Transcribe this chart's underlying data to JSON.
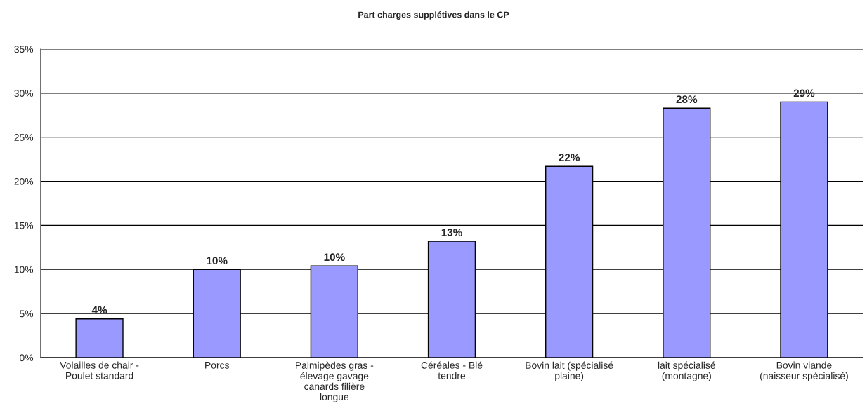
{
  "chart_data": {
    "type": "bar",
    "title": "Part charges supplétives dans le CP",
    "categories": [
      "Volailles de chair -\nPoulet standard",
      "Porcs",
      "Palmipèdes gras -\nélevage gavage\ncanards filière\nlongue",
      "Céréales - Blé\ntendre",
      "Bovin lait (spécialisé\nplaine)",
      "lait spécialisé\n(montagne)",
      "Bovin viande\n(naisseur spécialisé)"
    ],
    "values": [
      0.044,
      0.1,
      0.104,
      0.132,
      0.217,
      0.283,
      0.29
    ],
    "value_labels": [
      "4%",
      "10%",
      "10%",
      "13%",
      "22%",
      "28%",
      "29%"
    ],
    "color": "#9999ff",
    "ylim": [
      0,
      0.35
    ],
    "yticks": [
      {
        "value": 0,
        "label": "0%"
      },
      {
        "value": 0.05,
        "label": "5%"
      },
      {
        "value": 0.1,
        "label": "10%"
      },
      {
        "value": 0.15,
        "label": "15%"
      },
      {
        "value": 0.2,
        "label": "20%"
      },
      {
        "value": 0.25,
        "label": "25%"
      },
      {
        "value": 0.3,
        "label": "30%"
      },
      {
        "value": 0.35,
        "label": "35%"
      }
    ],
    "grid": "y",
    "legend": false
  }
}
